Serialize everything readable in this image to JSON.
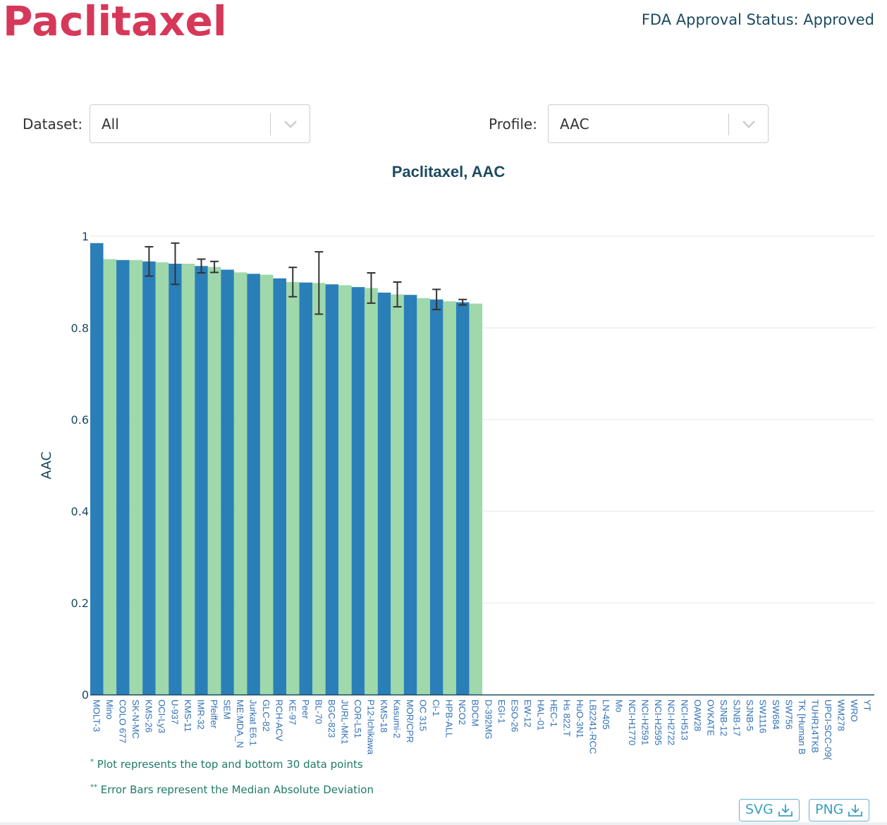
{
  "header": {
    "title": "Paclitaxel",
    "fda_status": "FDA Approval Status: Approved"
  },
  "controls": {
    "dataset_label": "Dataset:",
    "dataset_value": "All",
    "profile_label": "Profile:",
    "profile_value": "AAC"
  },
  "colors": {
    "title": "#d6385a",
    "bar_blue": "#2a7fb8",
    "bar_green": "#9fd8ab",
    "error_bar": "#333333",
    "tick_label": "#2f6fb8"
  },
  "chart_data": {
    "type": "bar",
    "title": "Paclitaxel, AAC",
    "ylabel": "AAC",
    "xlabel": "",
    "ylim": [
      0,
      1
    ],
    "yticks": [
      0,
      0.2,
      0.4,
      0.6,
      0.8,
      1
    ],
    "ytick_labels": [
      "0",
      "0.2",
      "0.4",
      "0.6",
      "0.8",
      "1"
    ],
    "grid": true,
    "categories": [
      "MOLT-3",
      "Mino",
      "COLO 677",
      "SK-N-MC",
      "KMS-26",
      "OCI-Ly3",
      "U-937",
      "KMS-11",
      "IMR-32",
      "Pfeiffer",
      "SEM",
      "ME:MDA_N",
      "Jurkat E6.1",
      "GLC-82",
      "RCH-ACV",
      "KE-97",
      "Peer",
      "BL-70",
      "BGC-823",
      "JURL-MK1",
      "COR-L51",
      "P12-Ichikawa",
      "KMS-18",
      "Kasumi-2",
      "MOR/CPR",
      "OC 315",
      "Ci-1",
      "HPB-ALL",
      "NCO2",
      "BDCM",
      "D-392MG",
      "EGI-1",
      "ESO-26",
      "EW-12",
      "HAL-01",
      "HEC-1",
      "Hs 822.T",
      "HuO-3N1",
      "LB2241-RCC",
      "LN-405",
      "Mo",
      "NCI-H1770",
      "NCI-H2591",
      "NCI-H2595",
      "NCI-H2722",
      "NCI-H513",
      "OAW28",
      "OVKATE",
      "SJNB-12",
      "SJNB-17",
      "SJNB-5",
      "SW1116",
      "SW684",
      "SW756",
      "TK [Human B",
      "TUHR14TKB",
      "UPCI-SCC-09(",
      "WM278",
      "WRO",
      "YT"
    ],
    "values": [
      0.985,
      0.95,
      0.948,
      0.948,
      0.945,
      0.943,
      0.94,
      0.94,
      0.935,
      0.933,
      0.927,
      0.921,
      0.918,
      0.916,
      0.908,
      0.9,
      0.899,
      0.898,
      0.895,
      0.893,
      0.889,
      0.887,
      0.877,
      0.873,
      0.872,
      0.865,
      0.862,
      0.858,
      0.856,
      0.853,
      0,
      0,
      0,
      0,
      0,
      0,
      0,
      0,
      0,
      0,
      0,
      0,
      0,
      0,
      0,
      0,
      0,
      0,
      0,
      0,
      0,
      0,
      0,
      0,
      0,
      0,
      0,
      0,
      0,
      0
    ],
    "error": [
      0,
      0,
      0,
      0,
      0.032,
      0,
      0.045,
      0,
      0.015,
      0.012,
      0,
      0,
      0,
      0,
      0,
      0.032,
      0,
      0.068,
      0,
      0,
      0,
      0.033,
      0,
      0.027,
      0,
      0,
      0.022,
      0,
      0.006,
      0,
      0,
      0,
      0,
      0,
      0,
      0,
      0,
      0,
      0,
      0,
      0,
      0,
      0,
      0,
      0,
      0,
      0,
      0,
      0,
      0,
      0,
      0,
      0,
      0,
      0,
      0,
      0,
      0,
      0,
      0
    ]
  },
  "notes": {
    "note1_mark": "*",
    "note1": "Plot represents the top and bottom 30 data points",
    "note2_mark": "**",
    "note2": "Error Bars represent the Median Absolute Deviation"
  },
  "downloads": {
    "svg_label": "SVG",
    "png_label": "PNG"
  }
}
